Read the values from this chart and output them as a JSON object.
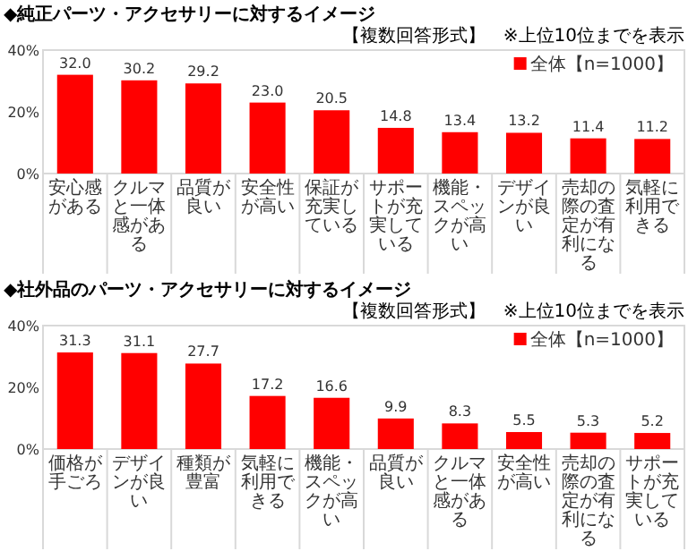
{
  "chart_data": [
    {
      "type": "bar",
      "title": "◆純正パーツ・アクセサリーに対するイメージ",
      "subtitle": "【複数回答形式】　※上位10位までを表示",
      "categories": [
        "安心感がある",
        "クルマと一体感がある",
        "品質が良い",
        "安全性が高い",
        "保証が充実している",
        "サポートが充実している",
        "機能・スペックが高い",
        "デザインが良い",
        "売却の際の査定が有利になる",
        "気軽に利用できる"
      ],
      "series": [
        {
          "name": "全体【n=1000】",
          "color": "#ff0000",
          "values": [
            32.0,
            30.2,
            29.2,
            23.0,
            20.5,
            14.8,
            13.4,
            13.2,
            11.4,
            11.2
          ],
          "value_labels": [
            "32.0",
            "30.2",
            "29.2",
            "23.0",
            "20.5",
            "14.8",
            "13.4",
            "13.2",
            "11.4",
            "11.2"
          ]
        }
      ],
      "ylim": [
        0,
        40
      ],
      "yticks": [
        {
          "value": 0,
          "label": "0%"
        },
        {
          "value": 20,
          "label": "20%"
        },
        {
          "value": 40,
          "label": "40%"
        }
      ],
      "legend": "top right",
      "grid": false
    },
    {
      "type": "bar",
      "title": "◆社外品のパーツ・アクセサリーに対するイメージ",
      "subtitle": "【複数回答形式】　※上位10位までを表示",
      "categories": [
        "価格が手ごろ",
        "デザインが良い",
        "種類が豊富",
        "気軽に利用できる",
        "機能・スペックが高い",
        "品質が良い",
        "クルマと一体感がある",
        "安全性が高い",
        "売却の際の査定が有利になる",
        "サポートが充実している"
      ],
      "series": [
        {
          "name": "全体【n=1000】",
          "color": "#ff0000",
          "values": [
            31.3,
            31.1,
            27.7,
            17.2,
            16.6,
            9.9,
            8.3,
            5.5,
            5.3,
            5.2
          ],
          "value_labels": [
            "31.3",
            "31.1",
            "27.7",
            "17.2",
            "16.6",
            "9.9",
            "8.3",
            "5.5",
            "5.3",
            "5.2"
          ]
        }
      ],
      "ylim": [
        0,
        40
      ],
      "yticks": [
        {
          "value": 0,
          "label": "0%"
        },
        {
          "value": 20,
          "label": "20%"
        },
        {
          "value": 40,
          "label": "40%"
        }
      ],
      "legend": "top right",
      "grid": false
    }
  ]
}
